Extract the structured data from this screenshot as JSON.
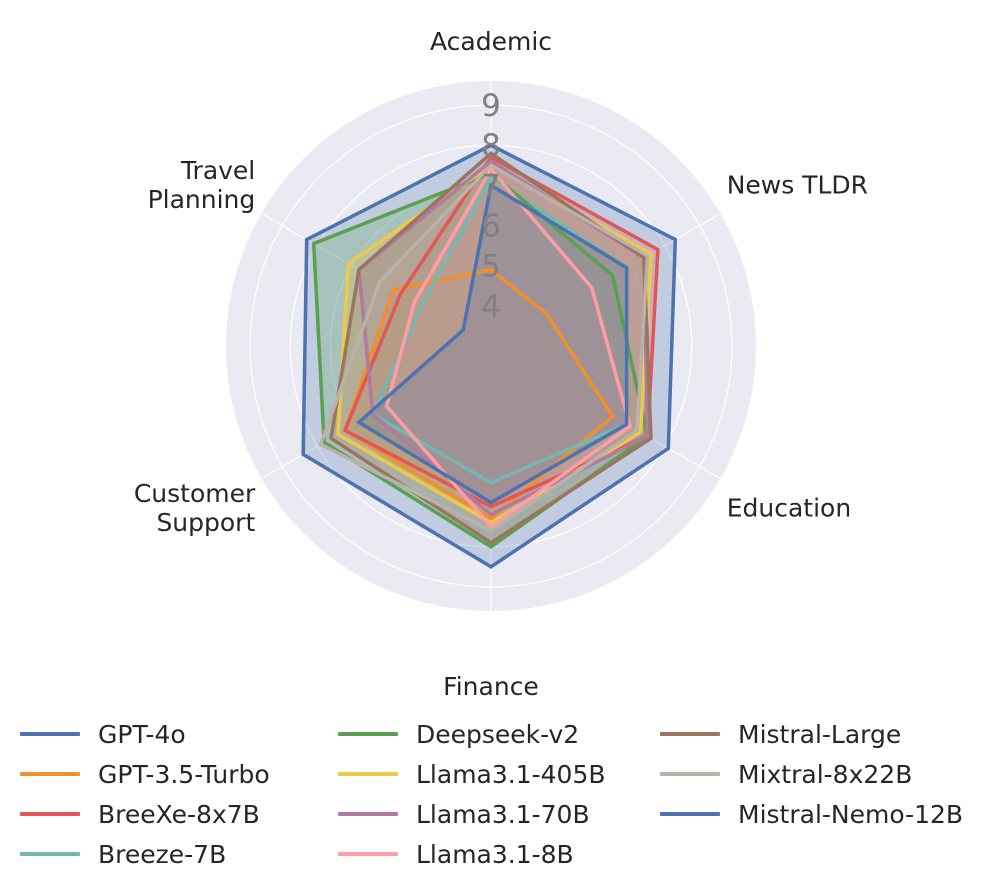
{
  "chart_data": {
    "type": "radar",
    "axes": [
      "Academic",
      "News TLDR",
      "Education",
      "Finance",
      "Customer\nSupport",
      "Travel\nPlanning"
    ],
    "radial_ticks": [
      4,
      5,
      6,
      7,
      8,
      9
    ],
    "rlim": [
      3,
      9.6
    ],
    "grid": true,
    "legend_position": "bottom",
    "series": [
      {
        "name": "GPT-4o",
        "color": "#4c72b0",
        "values": [
          8.0,
          8.3,
          8.1,
          8.5,
          8.4,
          8.3
        ]
      },
      {
        "name": "GPT-3.5-Turbo",
        "color": "#f28e2b",
        "values": [
          4.9,
          4.6,
          6.5,
          7.3,
          7.2,
          5.8
        ]
      },
      {
        "name": "BreeXe-8x7B",
        "color": "#e15759",
        "values": [
          7.7,
          7.8,
          7.5,
          7.0,
          7.2,
          5.6
        ]
      },
      {
        "name": "Breeze-7B",
        "color": "#76b7b2",
        "values": [
          7.2,
          6.9,
          6.9,
          6.4,
          6.4,
          5.0
        ]
      },
      {
        "name": "Deepseek-v2",
        "color": "#59a14f",
        "values": [
          7.3,
          6.5,
          7.5,
          8.0,
          7.8,
          8.1
        ]
      },
      {
        "name": "Llama3.1-405B",
        "color": "#edc948",
        "values": [
          7.5,
          7.6,
          7.3,
          7.4,
          7.4,
          7.1
        ]
      },
      {
        "name": "Llama3.1-70B",
        "color": "#b07aa1",
        "values": [
          7.6,
          7.4,
          7.5,
          7.2,
          6.4,
          6.8
        ]
      },
      {
        "name": "Llama3.1-8B",
        "color": "#ff9da7",
        "values": [
          7.4,
          5.9,
          7.0,
          7.5,
          6.0,
          5.2
        ]
      },
      {
        "name": "Mistral-Large",
        "color": "#9c755f",
        "values": [
          7.8,
          7.4,
          7.6,
          7.9,
          7.6,
          6.8
        ]
      },
      {
        "name": "Mixtral-8x22B",
        "color": "#bab0ac",
        "values": [
          7.5,
          7.5,
          7.2,
          7.6,
          7.9,
          6.2
        ]
      },
      {
        "name": "Mistral-Nemo-12B",
        "color": "#4c72b0",
        "values": [
          7.0,
          6.9,
          6.9,
          6.9,
          6.8,
          3.8
        ]
      }
    ]
  }
}
